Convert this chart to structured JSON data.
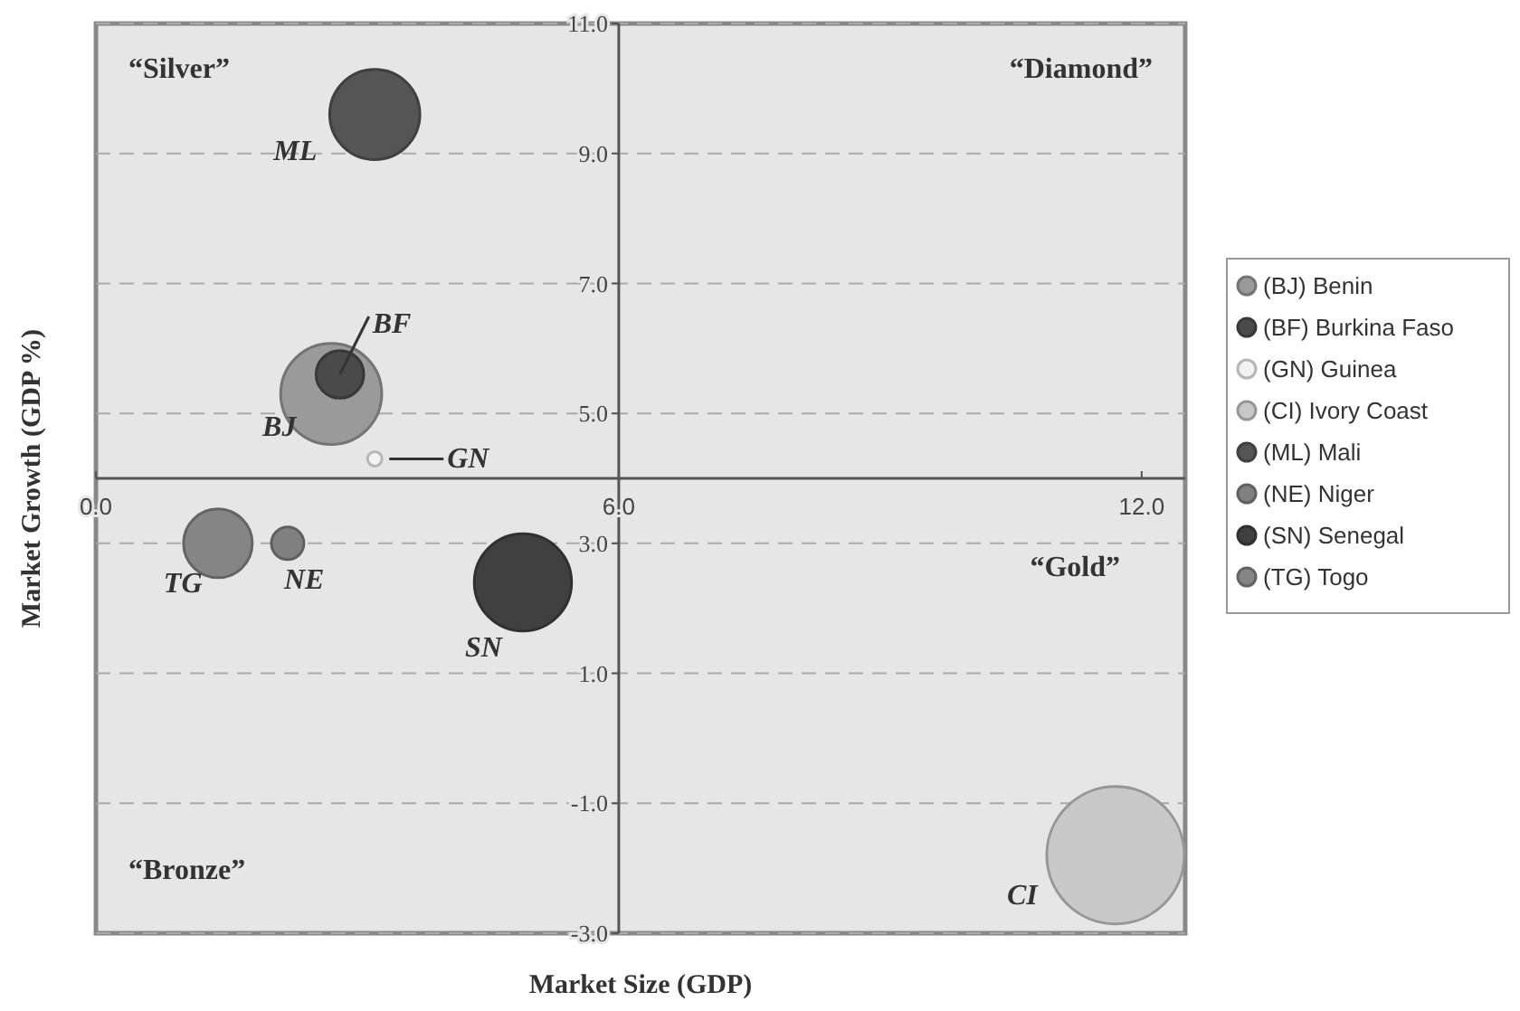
{
  "chart_data": {
    "type": "bubble",
    "xlabel": "Market Size (GDP)",
    "ylabel": "Market Growth (GDP %)",
    "xlim": [
      0,
      12.5
    ],
    "xticks": [
      {
        "value": 0,
        "label": "0.0"
      },
      {
        "value": 6,
        "label": "6.0"
      },
      {
        "value": 12,
        "label": "12.0"
      }
    ],
    "ylim": [
      -3,
      11
    ],
    "yticks": [
      {
        "value": -3,
        "label": "-3.0"
      },
      {
        "value": -1,
        "label": "-1.0"
      },
      {
        "value": 1,
        "label": "1.0"
      },
      {
        "value": 3,
        "label": "3.0"
      },
      {
        "value": 5,
        "label": "5.0"
      },
      {
        "value": 7,
        "label": "7.0"
      },
      {
        "value": 9,
        "label": "9.0"
      },
      {
        "value": 11,
        "label": "11.0"
      }
    ],
    "grid": "y",
    "legend": "right",
    "marker": "circle",
    "series": [
      {
        "name": "(BJ) Benin",
        "color": "#9a9a9a",
        "x": [
          2.7
        ],
        "values": [
          5.3
        ],
        "sizes": [
          0.54
        ]
      },
      {
        "name": "(BF) Burkina Faso",
        "color": "#4a4a4a",
        "x": [
          2.8
        ],
        "values": [
          5.6
        ],
        "sizes": [
          0.12
        ]
      },
      {
        "name": "(GN) Guinea",
        "color": "#f2f2f2",
        "x": [
          3.2
        ],
        "values": [
          4.3
        ],
        "sizes": [
          0.011
        ]
      },
      {
        "name": "(CI) Ivory Coast",
        "color": "#c8c8c8",
        "x": [
          11.7
        ],
        "values": [
          -1.8
        ],
        "sizes": [
          1
        ]
      },
      {
        "name": "(ML) Mali",
        "color": "#555555",
        "x": [
          3.2
        ],
        "values": [
          9.6
        ],
        "sizes": [
          0.43
        ]
      },
      {
        "name": "(NE) Niger",
        "color": "#808080",
        "x": [
          2.2
        ],
        "values": [
          3.0
        ],
        "sizes": [
          0.056
        ]
      },
      {
        "name": "(SN) Senegal",
        "color": "#404040",
        "x": [
          4.9
        ],
        "values": [
          2.4
        ],
        "sizes": [
          0.5
        ]
      },
      {
        "name": "(TG) Togo",
        "color": "#858585",
        "x": [
          1.4
        ],
        "values": [
          3.0
        ],
        "sizes": [
          0.25
        ]
      }
    ],
    "annotations": [
      "“Silver”",
      "“Diamond”",
      "“Gold”",
      "“Bronze”",
      {
        "text": "BJ",
        "x": 2.7,
        "y": 5.3
      },
      {
        "text": "BF",
        "x": 2.8,
        "y": 5.6
      },
      {
        "text": "GN",
        "x": 3.2,
        "y": 4.3
      },
      {
        "text": "CI",
        "x": 11.7,
        "y": -1.8
      },
      {
        "text": "ML",
        "x": 3.2,
        "y": 9.6
      },
      {
        "text": "NE",
        "x": 2.2,
        "y": 3.0
      },
      {
        "text": "SN",
        "x": 4.9,
        "y": 2.4
      },
      {
        "text": "TG",
        "x": 1.4,
        "y": 3.0
      }
    ]
  }
}
